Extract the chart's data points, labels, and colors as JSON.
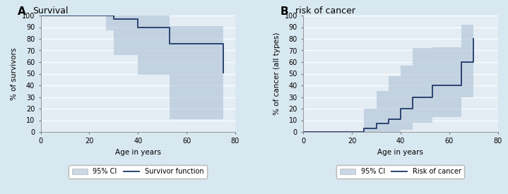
{
  "panel_A": {
    "title_letter": "A",
    "title_text": "Survival",
    "ylabel": "% of survivors",
    "xlabel": "Age in years",
    "xlim": [
      0,
      80
    ],
    "ylim": [
      0,
      100
    ],
    "xticks": [
      0,
      20,
      40,
      60,
      80
    ],
    "yticks": [
      0,
      10,
      20,
      30,
      40,
      50,
      60,
      70,
      80,
      90,
      100
    ],
    "surv_x": [
      0,
      27,
      30,
      40,
      53,
      75
    ],
    "surv_y": [
      100,
      100,
      97,
      90,
      76,
      51
    ],
    "ci_upper_x": [
      0,
      27,
      30,
      40,
      53,
      75
    ],
    "ci_upper_y": [
      100,
      100,
      100,
      100,
      91,
      83
    ],
    "ci_lower_x": [
      0,
      27,
      30,
      40,
      53,
      75
    ],
    "ci_lower_y": [
      100,
      87,
      66,
      49,
      11,
      11
    ],
    "legend_ci_label": "95% CI",
    "legend_line_label": "Survivor function"
  },
  "panel_B": {
    "title_letter": "B",
    "title_text": "risk of cancer",
    "ylabel": "% of cancer (all types)",
    "xlabel": "Age in years",
    "xlim": [
      0,
      80
    ],
    "ylim": [
      0,
      100
    ],
    "xticks": [
      0,
      20,
      40,
      60,
      80
    ],
    "yticks": [
      0,
      10,
      20,
      30,
      40,
      50,
      60,
      70,
      80,
      90,
      100
    ],
    "risk_x": [
      0,
      20,
      25,
      30,
      35,
      40,
      45,
      53,
      65,
      70
    ],
    "risk_y": [
      0,
      0,
      3,
      7,
      11,
      20,
      30,
      40,
      60,
      80
    ],
    "ci_upper_x": [
      0,
      20,
      25,
      30,
      35,
      40,
      45,
      53,
      65,
      70
    ],
    "ci_upper_y": [
      0,
      0,
      20,
      35,
      48,
      57,
      72,
      73,
      92,
      100
    ],
    "ci_lower_x": [
      0,
      20,
      25,
      30,
      35,
      40,
      45,
      53,
      65,
      70
    ],
    "ci_lower_y": [
      0,
      0,
      0,
      0,
      0,
      2,
      8,
      13,
      30,
      44
    ],
    "legend_ci_label": "95% CI",
    "legend_line_label": "Risk of cancer"
  },
  "bg_color": "#d8e8f0",
  "plot_bg_color": "#e4edf4",
  "ci_fill_color": "#b0c4d8",
  "ci_fill_alpha": 0.65,
  "line_color": "#2b4470",
  "line_width": 1.4,
  "grid_color": "#ffffff",
  "font_size": 7.5,
  "title_letter_size": 11,
  "title_text_size": 9
}
